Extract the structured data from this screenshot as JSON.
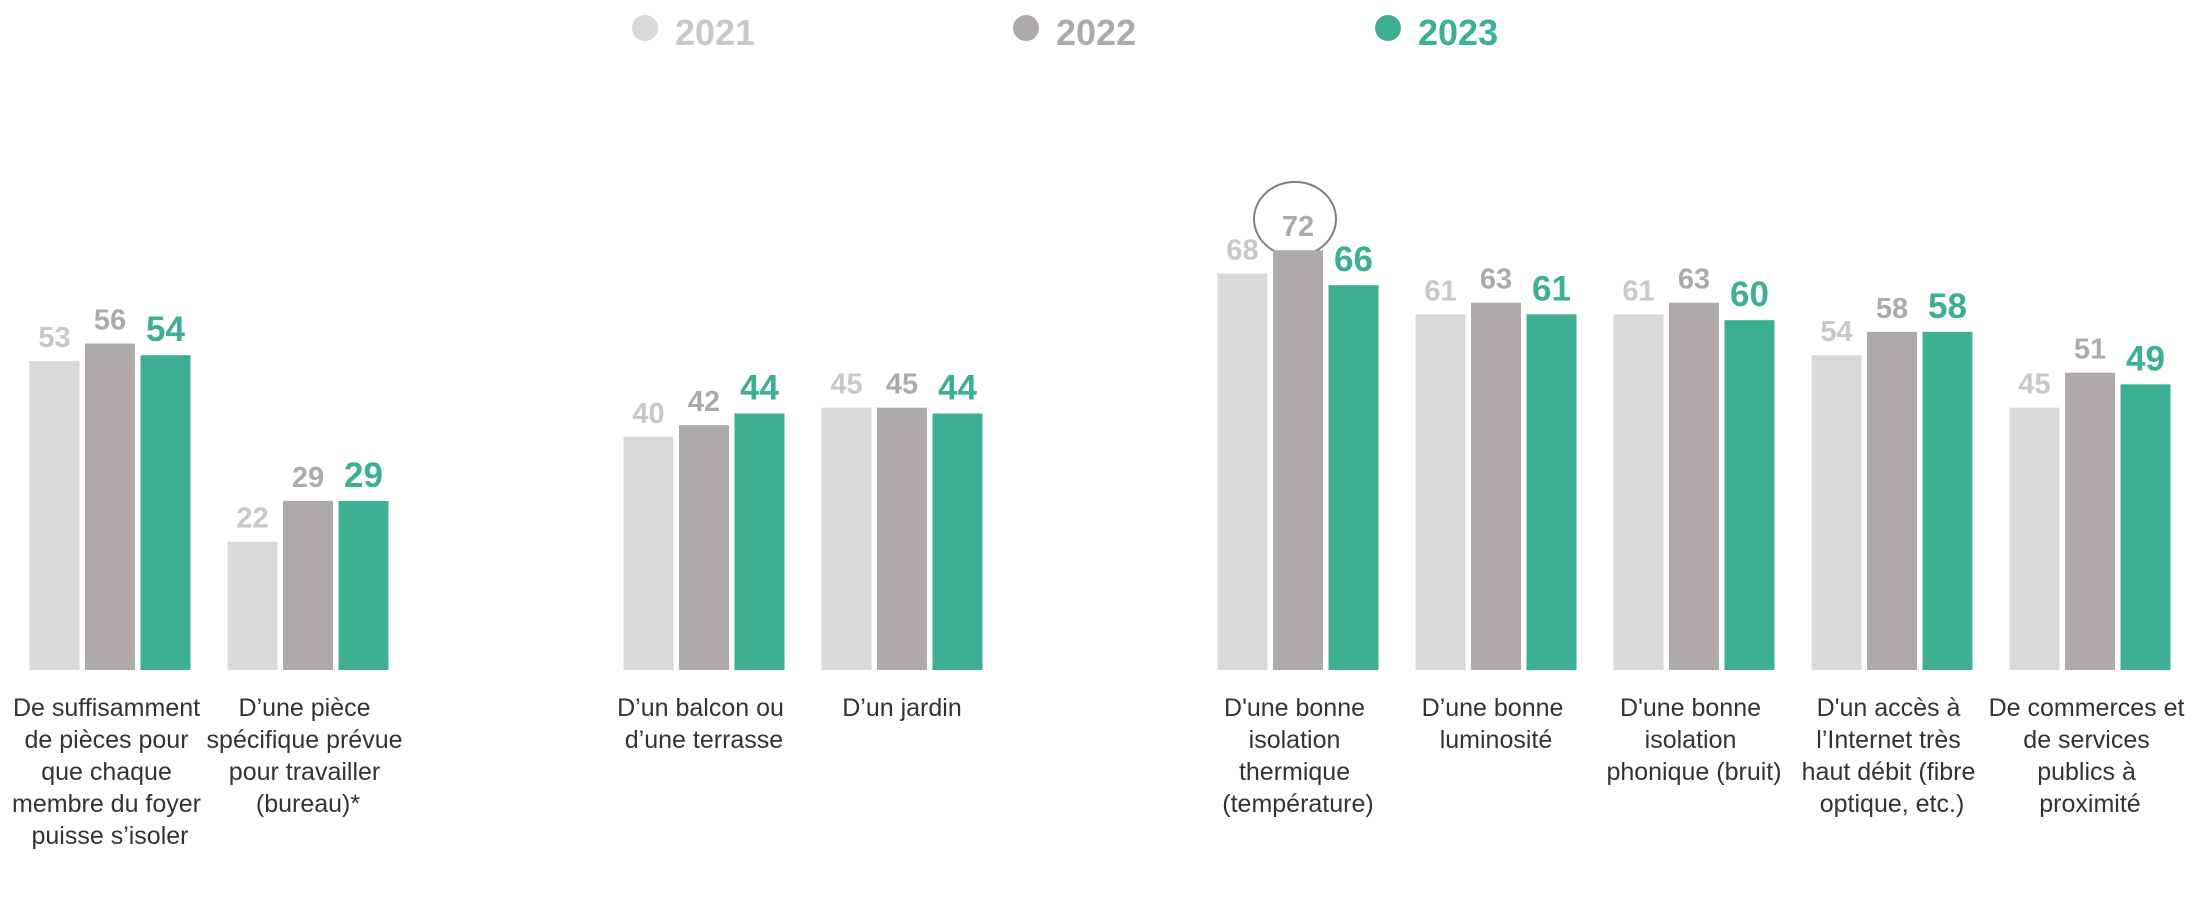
{
  "chart_data": {
    "type": "bar",
    "categories": [
      "De suffisamment de pièces pour que chaque membre du foyer puisse s’isoler",
      "D’une pièce spécifique prévue pour travailler (bureau)*",
      "D’un balcon ou d’une terrasse",
      "D’un jardin",
      "D'une bonne isolation thermique (température)",
      "D’une bonne luminosité",
      "D'une bonne isolation phonique (bruit)",
      "D'un accès à l’Internet très haut débit (fibre optique, etc.)",
      "De commerces et de services publics à proximité"
    ],
    "series": [
      {
        "name": "2021",
        "color": "#d9d9d9",
        "values": [
          53,
          22,
          40,
          45,
          68,
          61,
          61,
          54,
          45
        ]
      },
      {
        "name": "2022",
        "color": "#aeaaaa",
        "values": [
          56,
          29,
          42,
          45,
          72,
          63,
          63,
          58,
          51
        ]
      },
      {
        "name": "2023",
        "color": "#3daf94",
        "values": [
          54,
          29,
          44,
          44,
          66,
          61,
          60,
          58,
          49
        ]
      }
    ],
    "legend": "top"
  }
}
